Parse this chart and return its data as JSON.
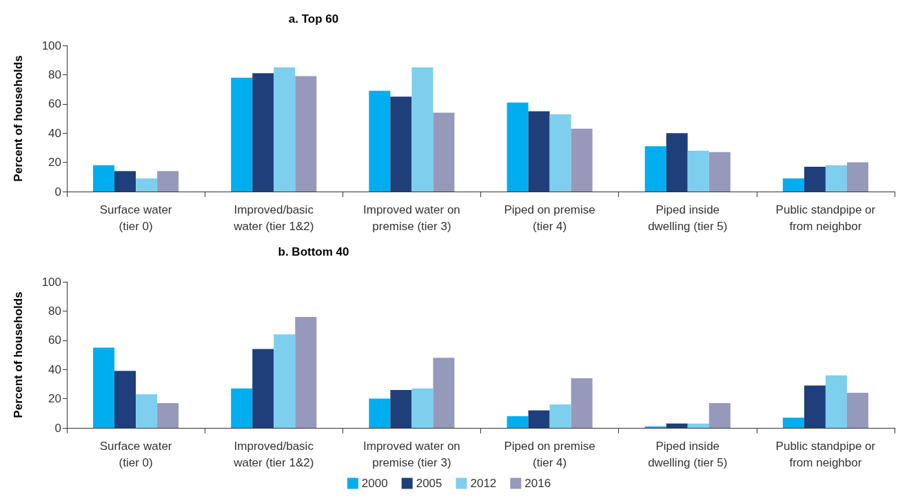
{
  "chart_data": [
    {
      "type": "bar",
      "title": "a. Top 60",
      "ylabel": "Percent of households",
      "categories": [
        "Surface water\n(tier 0)",
        "Improved/basic\nwater (tier 1&2)",
        "Improved water on\npremise (tier 3)",
        "Piped on premise\n(tier 4)",
        "Piped inside\ndwelling (tier 5)",
        "Public standpipe or\nfrom neighbor"
      ],
      "ylim": [
        0,
        100
      ],
      "yticks": [
        0,
        20,
        40,
        60,
        80,
        100
      ],
      "grid": false,
      "legend": false,
      "series": [
        {
          "color": "#00aeef",
          "values": [
            18,
            78,
            69,
            61,
            31,
            9
          ]
        },
        {
          "color": "#1f3f7a",
          "values": [
            14,
            81,
            65,
            55,
            40,
            17
          ]
        },
        {
          "color": "#7ecfed",
          "values": [
            9,
            85,
            85,
            53,
            28,
            18
          ]
        },
        {
          "color": "#9799bb",
          "values": [
            14,
            79,
            54,
            43,
            27,
            20
          ]
        }
      ]
    },
    {
      "type": "bar",
      "title": "b. Bottom 40",
      "ylabel": "Percent of households",
      "categories": [
        "Surface water\n(tier 0)",
        "Improved/basic\nwater (tier 1&2)",
        "Improved water on\npremise (tier 3)",
        "Piped on premise\n(tier 4)",
        "Piped inside\ndwelling (tier 5)",
        "Public standpipe or\nfrom neighbor"
      ],
      "ylim": [
        0,
        100
      ],
      "yticks": [
        0,
        20,
        40,
        60,
        80,
        100
      ],
      "grid": false,
      "legend": "bottom",
      "series": [
        {
          "name": "2000",
          "color": "#00aeef",
          "values": [
            55,
            27,
            20,
            8,
            1,
            7
          ]
        },
        {
          "name": "2005",
          "color": "#1f3f7a",
          "values": [
            39,
            54,
            26,
            12,
            3,
            29
          ]
        },
        {
          "name": "2012",
          "color": "#7ecfed",
          "values": [
            23,
            64,
            27,
            16,
            3,
            36
          ]
        },
        {
          "name": "2016",
          "color": "#9799bb",
          "values": [
            17,
            76,
            48,
            34,
            17,
            24
          ]
        }
      ]
    }
  ]
}
